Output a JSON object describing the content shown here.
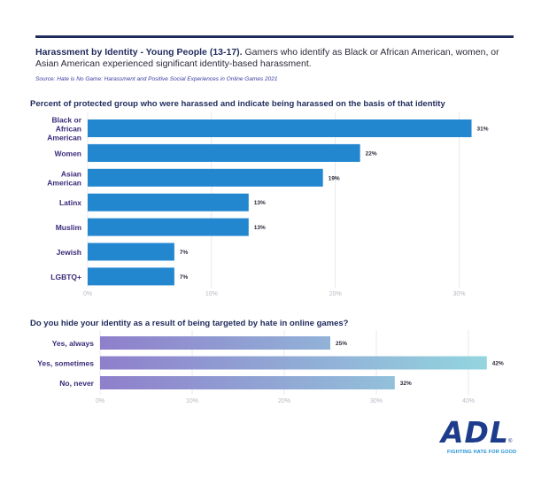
{
  "header": {
    "title_bold": "Harassment by Identity - Young People (13-17).",
    "title_rest": " Gamers who identify as Black or African American, women, or Asian American experienced significant identity-based harassment.",
    "source": "Source: Hate is No Game: Harassment and Positive Social Experiences in Online Games 2021"
  },
  "logo": {
    "wordmark": "ADL",
    "reg": "®",
    "tagline": "FIGHTING HATE FOR GOOD"
  },
  "colors": {
    "bar1": "#2387d0",
    "grad_start": "#8f7fcc",
    "grad_end": "#93d5df",
    "category_text": "#3b2a7a",
    "axis_text": "#b8b8c4",
    "grid": "#dcdce6"
  },
  "chart_data": [
    {
      "type": "bar",
      "orientation": "horizontal",
      "title": "Percent of protected group who were harassed and indicate being harassed on the basis of that identity",
      "categories": [
        [
          "Black or",
          "African",
          "American"
        ],
        [
          "Women"
        ],
        [
          "Asian",
          "American"
        ],
        [
          "Latinx"
        ],
        [
          "Muslim"
        ],
        [
          "Jewish"
        ],
        [
          "LGBTQ+"
        ]
      ],
      "values": [
        31,
        22,
        19,
        13,
        13,
        7,
        7
      ],
      "data_labels": [
        "31%",
        "22%",
        "19%",
        "13%",
        "13%",
        "7%",
        "7%"
      ],
      "xlim": [
        0,
        33
      ],
      "ticks": [
        0,
        10,
        20,
        30
      ],
      "tick_labels": [
        "0%",
        "10%",
        "20%",
        "30%"
      ],
      "grid": true
    },
    {
      "type": "bar",
      "orientation": "horizontal",
      "title": "Do you hide your identity as a result of being targeted by hate in online games?",
      "categories": [
        [
          "Yes, always"
        ],
        [
          "Yes, sometimes"
        ],
        [
          "No, never"
        ]
      ],
      "values": [
        25,
        42,
        32
      ],
      "data_labels": [
        "25%",
        "42%",
        "32%"
      ],
      "xlim": [
        0,
        44
      ],
      "ticks": [
        0,
        10,
        20,
        30,
        40
      ],
      "tick_labels": [
        "0%",
        "10%",
        "20%",
        "30%",
        "40%"
      ],
      "grid": true
    }
  ]
}
